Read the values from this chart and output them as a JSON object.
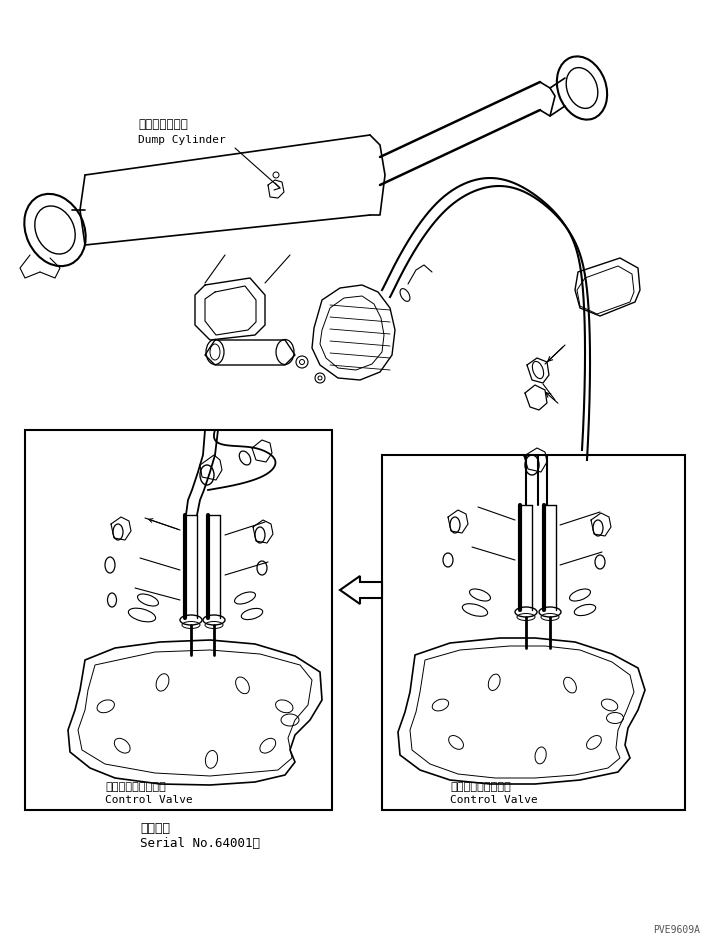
{
  "bg_color": "#ffffff",
  "line_color": "#000000",
  "label_dump_cylinder_jp": "ダンプシリンダ",
  "label_dump_cylinder_en": "Dump Cylinder",
  "label_control_valve_jp": "コントロールバルブ",
  "label_control_valve_en": "Control Valve",
  "label_serial_jp": "適用号機",
  "label_serial_en": "Serial No.64001～",
  "watermark": "PVE9609A",
  "fig_width": 7.11,
  "fig_height": 9.41,
  "dpi": 100
}
